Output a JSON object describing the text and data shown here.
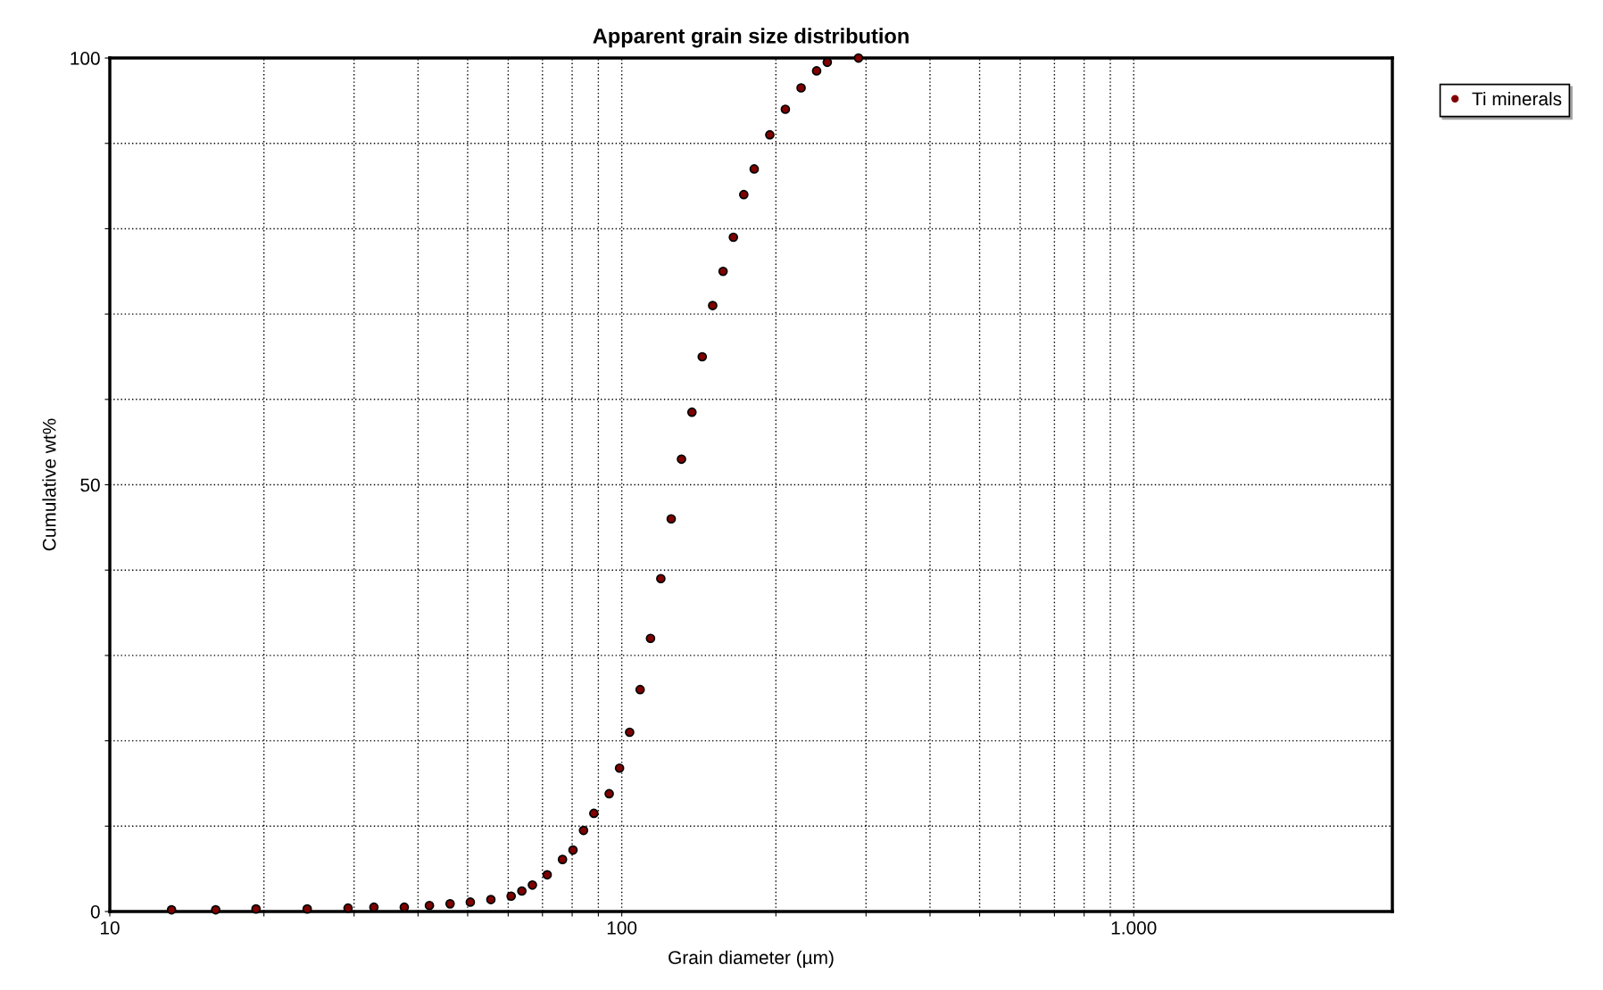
{
  "chart_data": {
    "type": "scatter",
    "title": "Apparent grain size distribution",
    "xlabel": "Grain diameter (µm)",
    "ylabel": "Cumulative wt%",
    "log": "x",
    "xlim": [
      10,
      3200
    ],
    "ylim": [
      0,
      100
    ],
    "xticks": [
      10,
      {
        "value": 20,
        "label": null
      },
      {
        "value": 30,
        "label": null
      },
      {
        "value": 40,
        "label": null
      },
      {
        "value": 50,
        "label": null
      },
      {
        "value": 60,
        "label": null
      },
      {
        "value": 70,
        "label": null
      },
      {
        "value": 80,
        "label": null
      },
      {
        "value": 90,
        "label": null
      },
      100,
      {
        "value": 200,
        "label": null
      },
      {
        "value": 300,
        "label": null
      },
      {
        "value": 400,
        "label": null
      },
      {
        "value": 500,
        "label": null
      },
      {
        "value": 600,
        "label": null
      },
      {
        "value": 700,
        "label": null
      },
      {
        "value": 800,
        "label": null
      },
      {
        "value": 900,
        "label": null
      },
      {
        "value": 1000,
        "label": "1.000"
      }
    ],
    "yticks": [
      0,
      {
        "value": 10,
        "label": null
      },
      {
        "value": 20,
        "label": null
      },
      {
        "value": 30,
        "label": null
      },
      {
        "value": 40,
        "label": null
      },
      50,
      {
        "value": 60,
        "label": null
      },
      {
        "value": 70,
        "label": null
      },
      {
        "value": 80,
        "label": null
      },
      {
        "value": 90,
        "label": null
      },
      100
    ],
    "grid": true,
    "legend": "top right",
    "marker": "circle",
    "series": [
      {
        "name": "Ti minerals",
        "color": "#800000",
        "x": [
          13.2,
          16.1,
          19.3,
          24.3,
          29.2,
          32.8,
          37.6,
          42.1,
          46.2,
          50.6,
          55.5,
          60.8,
          63.8,
          66.9,
          71.5,
          76.6,
          80.3,
          84.2,
          88.2,
          94.5,
          99.0,
          103.6,
          108.6,
          113.8,
          119.2,
          124.9,
          130.8,
          137.1,
          143.6,
          150.5,
          157.7,
          165.2,
          173.1,
          181.4,
          194.6,
          208.7,
          224.0,
          240.2,
          252.0,
          290
        ],
        "values": [
          0.2,
          0.2,
          0.3,
          0.3,
          0.4,
          0.5,
          0.5,
          0.7,
          0.9,
          1.1,
          1.4,
          1.8,
          2.4,
          3.1,
          4.3,
          6.1,
          7.2,
          9.5,
          11.5,
          13.8,
          16.8,
          21,
          26,
          32,
          39,
          46,
          53,
          58.5,
          65,
          71,
          75,
          79,
          84,
          87,
          91,
          94,
          96.5,
          98.5,
          99.5,
          100
        ]
      }
    ]
  }
}
